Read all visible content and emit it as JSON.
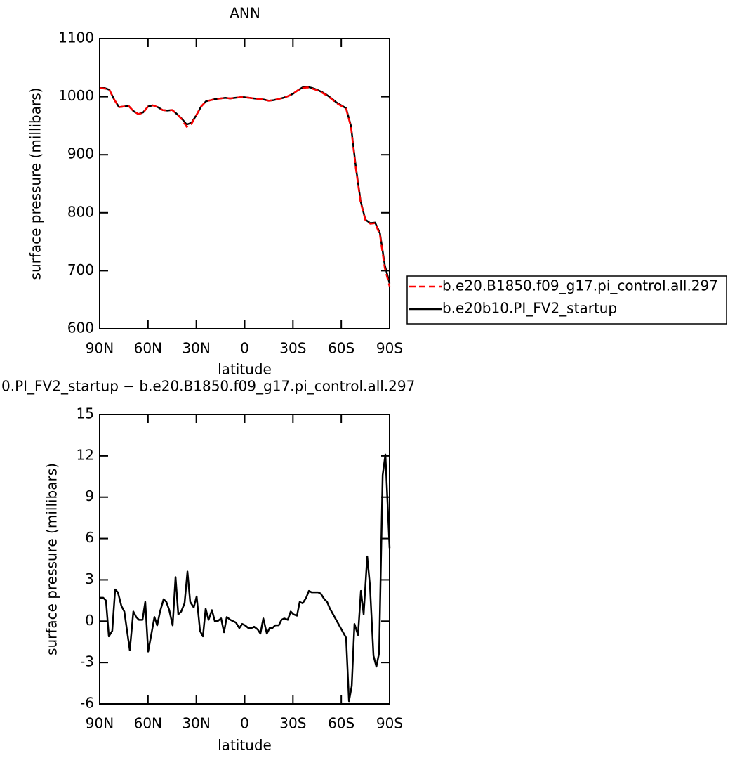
{
  "chart_data": [
    {
      "type": "line",
      "title": "ANN",
      "x_label": "latitude",
      "y_label": "surface pressure (millibars)",
      "x": [
        90,
        87,
        84,
        81,
        78,
        75,
        72,
        69,
        66,
        63,
        60,
        57,
        54,
        51,
        48,
        45,
        42,
        39,
        36,
        33,
        30,
        27,
        24,
        21,
        18,
        15,
        12,
        9,
        6,
        3,
        0,
        -3,
        -6,
        -9,
        -12,
        -15,
        -18,
        -21,
        -24,
        -27,
        -30,
        -33,
        -36,
        -39,
        -42,
        -45,
        -48,
        -51,
        -54,
        -57,
        -60,
        -63,
        -66,
        -69,
        -72,
        -75,
        -78,
        -81,
        -84,
        -87,
        -90
      ],
      "series": [
        {
          "name": "b.e20.B1850.f09_g17.pi_control.all.297",
          "color": "#ff0000",
          "line_style": "dashed",
          "values": [
            1015,
            1014,
            1012,
            995,
            982,
            983,
            984,
            975,
            970,
            972,
            983,
            985,
            982,
            977,
            976,
            977,
            970,
            961,
            948,
            953,
            968,
            983,
            992,
            994,
            996,
            997,
            998,
            997,
            998,
            999,
            999,
            998,
            997,
            996,
            995,
            993,
            994,
            996,
            998,
            1001,
            1005,
            1011,
            1015,
            1016,
            1014,
            1011,
            1007,
            1002,
            996,
            989,
            984,
            979,
            948,
            877,
            818,
            787,
            781,
            782,
            762,
            705,
            673
          ]
        },
        {
          "name": "b.e20b10.PI_FV2_startup",
          "color": "#000000",
          "line_style": "solid",
          "values": [
            1015,
            1015,
            1012,
            995,
            982,
            983,
            984,
            975,
            970,
            973,
            983,
            985,
            982,
            977,
            976,
            977,
            970,
            962,
            952,
            955,
            968,
            983,
            992,
            994,
            996,
            997,
            998,
            997,
            998,
            999,
            999,
            998,
            997,
            996,
            995,
            993,
            994,
            996,
            998,
            1001,
            1005,
            1011,
            1016,
            1017,
            1015,
            1012,
            1008,
            1003,
            997,
            990,
            985,
            980,
            950,
            880,
            820,
            788,
            782,
            783,
            765,
            710,
            678
          ]
        }
      ],
      "xlim": [
        90,
        -90
      ],
      "xticks": [
        {
          "value": 90,
          "label": "90N"
        },
        {
          "value": 60,
          "label": "60N"
        },
        {
          "value": 30,
          "label": "30N"
        },
        0,
        {
          "value": -30,
          "label": "30S"
        },
        {
          "value": -60,
          "label": "60S"
        },
        {
          "value": -90,
          "label": "90S"
        }
      ],
      "ylim": [
        600,
        1100
      ],
      "yticks": [
        600,
        700,
        800,
        900,
        1000,
        1100
      ],
      "legend": "right"
    },
    {
      "type": "line",
      "title": "0.PI_FV2_startup − b.e20.B1850.f09_g17.pi_control.all.297",
      "x_label": "latitude",
      "y_label": "surface pressure (millibars)",
      "x": [
        90,
        87.8,
        86.1,
        84.3,
        82.2,
        80.4,
        78.7,
        76.5,
        74.7,
        71.3,
        69.1,
        67.3,
        65.6,
        63.4,
        61.7,
        59.9,
        57.7,
        56.0,
        54.3,
        52.5,
        50.3,
        48.6,
        46.8,
        44.7,
        42.9,
        41.2,
        39.4,
        37.3,
        35.5,
        33.8,
        31.6,
        29.8,
        27.7,
        25.9,
        24.2,
        22.4,
        20.3,
        18.5,
        16.8,
        14.6,
        12.8,
        11.1,
        8.9,
        7.2,
        5.4,
        3.3,
        1.5,
        -0.2,
        -2.4,
        -4.2,
        -5.9,
        -8.1,
        -9.8,
        -11.6,
        -13.8,
        -15.5,
        -17.2,
        -19.0,
        -21.2,
        -22.9,
        -24.6,
        -26.8,
        -28.6,
        -30.3,
        -32.5,
        -34.2,
        -36.0,
        -38.2,
        -39.9,
        -41.6,
        -43.8,
        -45.6,
        -47.3,
        -49.5,
        -51.2,
        -53.0,
        -63.0,
        -64.8,
        -66.5,
        -68.2,
        -70.4,
        -72.2,
        -73.9,
        -76.1,
        -77.8,
        -80.0,
        -81.8,
        -83.5,
        -85.7,
        -87.4,
        -90.0
      ],
      "values": [
        1.7,
        1.7,
        1.5,
        -1.1,
        -0.7,
        2.3,
        2.1,
        1.1,
        0.7,
        -2.1,
        0.7,
        0.3,
        0.1,
        0.1,
        1.4,
        -2.2,
        -0.8,
        0.3,
        -0.3,
        0.7,
        1.6,
        1.4,
        0.8,
        -0.3,
        3.2,
        0.5,
        0.7,
        1.3,
        3.6,
        1.4,
        1.0,
        1.8,
        -0.7,
        -1.1,
        0.9,
        0.1,
        0.8,
        0.0,
        0,
        0.2,
        -0.8,
        0.3,
        0.1,
        0.0,
        -0.1,
        -0.5,
        -0.2,
        -0.3,
        -0.5,
        -0.5,
        -0.4,
        -0.6,
        -0.9,
        0.2,
        -0.9,
        -0.5,
        -0.5,
        -0.3,
        -0.3,
        0.1,
        0.2,
        0.1,
        0.7,
        0.5,
        0.4,
        1.4,
        1.3,
        1.7,
        2.2,
        2.1,
        2.1,
        2.1,
        2.0,
        1.6,
        1.4,
        0.9,
        -1.2,
        -5.8,
        -4.7,
        -0.2,
        -1.0,
        2.2,
        0.5,
        4.7,
        2.6,
        -2.5,
        -3.3,
        -2.3,
        10.6,
        12.1,
        5.3
      ],
      "color": "#000000",
      "xlim": [
        90,
        -90
      ],
      "xticks": [
        {
          "value": 90,
          "label": "90N"
        },
        {
          "value": 60,
          "label": "60N"
        },
        {
          "value": 30,
          "label": "30N"
        },
        0,
        {
          "value": -30,
          "label": "30S"
        },
        {
          "value": -60,
          "label": "60S"
        },
        {
          "value": -90,
          "label": "90S"
        }
      ],
      "ylim": [
        -6,
        15
      ],
      "yticks": [
        -6,
        -3,
        0,
        3,
        6,
        9,
        12,
        15
      ]
    }
  ]
}
